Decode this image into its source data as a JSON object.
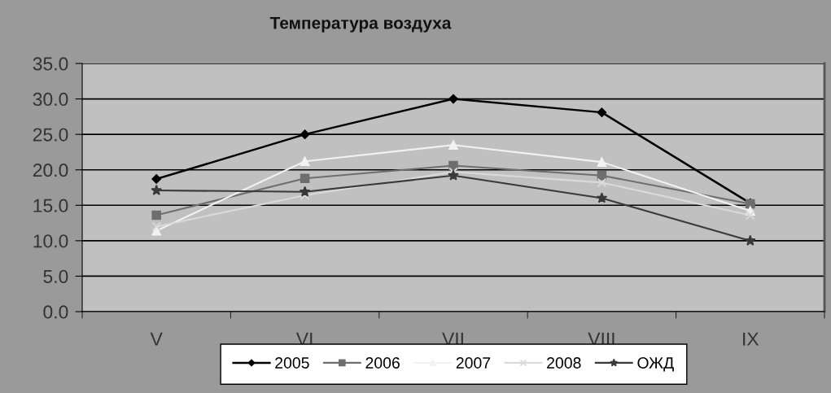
{
  "chart_data": {
    "type": "line",
    "title": "Температура воздуха",
    "categories": [
      "V",
      "VI",
      "VII",
      "VIII",
      "IX"
    ],
    "series": [
      {
        "name": "2005",
        "color": "#000000",
        "marker": "diamond",
        "values": [
          18.7,
          25.0,
          30.0,
          28.1,
          15.3
        ]
      },
      {
        "name": "2006",
        "color": "#6e6e6e",
        "marker": "square",
        "values": [
          13.6,
          18.8,
          20.6,
          19.2,
          15.2
        ]
      },
      {
        "name": "2007",
        "color": "#f2f2f2",
        "marker": "triangle",
        "values": [
          11.4,
          21.2,
          23.5,
          21.1,
          14.2
        ]
      },
      {
        "name": "2008",
        "color": "#dadada",
        "marker": "cross",
        "values": [
          12.0,
          16.4,
          19.7,
          18.2,
          13.6
        ]
      },
      {
        "name": "ОЖД",
        "color": "#3a3a3a",
        "marker": "star",
        "values": [
          17.1,
          16.9,
          19.2,
          16.0,
          10.0
        ]
      }
    ],
    "ylim": [
      0,
      35
    ],
    "yticks": [
      {
        "value": 0,
        "label": "0.0"
      },
      {
        "value": 5,
        "label": "5.0"
      },
      {
        "value": 10,
        "label": "10.0"
      },
      {
        "value": 15,
        "label": "15.0"
      },
      {
        "value": 20,
        "label": "20.0"
      },
      {
        "value": 25,
        "label": "25.0"
      },
      {
        "value": 30,
        "label": "30.0"
      },
      {
        "value": 35,
        "label": "35.0"
      }
    ],
    "grid": "y",
    "legend": "bottom",
    "line_style": "solid"
  }
}
